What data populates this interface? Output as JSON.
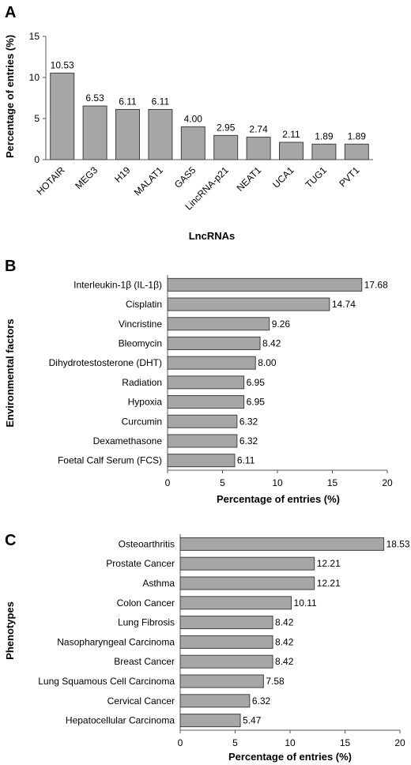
{
  "chart_data": [
    {
      "panel": "A",
      "type": "bar",
      "orientation": "vertical",
      "categories": [
        "HOTAIR",
        "MEG3",
        "H19",
        "MALAT1",
        "GAS5",
        "LincRNA-p21",
        "NEAT1",
        "UCA1",
        "TUG1",
        "PVT1"
      ],
      "values": [
        10.53,
        6.53,
        6.11,
        6.11,
        4.0,
        2.95,
        2.74,
        2.11,
        1.89,
        1.89
      ],
      "value_labels": [
        "10.53",
        "6.53",
        "6.11",
        "6.11",
        "4.00",
        "2.95",
        "2.74",
        "2.11",
        "1.89",
        "1.89"
      ],
      "xlabel": "LncRNAs",
      "ylabel": "Percentage of entries (%)",
      "ylim": [
        0,
        15
      ],
      "yticks": [
        "0",
        "5",
        "10",
        "15"
      ],
      "grid": false,
      "bar_color": "#a6a6a6",
      "bar_edge_color": "#404040"
    },
    {
      "panel": "B",
      "type": "bar",
      "orientation": "horizontal",
      "categories": [
        "Interleukin-1β (IL-1β)",
        "Cisplatin",
        "Vincristine",
        "Bleomycin",
        "Dihydrotestosterone (DHT)",
        "Radiation",
        "Hypoxia",
        "Curcumin",
        "Dexamethasone",
        "Foetal Calf Serum (FCS)"
      ],
      "values": [
        17.68,
        14.74,
        9.26,
        8.42,
        8.0,
        6.95,
        6.95,
        6.32,
        6.32,
        6.11
      ],
      "value_labels": [
        "17.68",
        "14.74",
        "9.26",
        "8.42",
        "8.00",
        "6.95",
        "6.95",
        "6.32",
        "6.32",
        "6.11"
      ],
      "xlabel": "Percentage of entries (%)",
      "ylabel": "Environmental factors",
      "xlim": [
        0,
        20
      ],
      "xticks": [
        "0",
        "5",
        "10",
        "15",
        "20"
      ],
      "grid": false,
      "bar_color": "#a6a6a6",
      "bar_edge_color": "#404040"
    },
    {
      "panel": "C",
      "type": "bar",
      "orientation": "horizontal",
      "categories": [
        "Osteoarthritis",
        "Prostate Cancer",
        "Asthma",
        "Colon Cancer",
        "Lung Fibrosis",
        "Nasopharyngeal Carcinoma",
        "Breast Cancer",
        "Lung Squamous Cell Carcinoma",
        "Cervical Cancer",
        "Hepatocellular Carcinoma"
      ],
      "values": [
        18.53,
        12.21,
        12.21,
        10.11,
        8.42,
        8.42,
        8.42,
        7.58,
        6.32,
        5.47
      ],
      "value_labels": [
        "18.53",
        "12.21",
        "12.21",
        "10.11",
        "8.42",
        "8.42",
        "8.42",
        "7.58",
        "6.32",
        "5.47"
      ],
      "xlabel": "Percentage of entries (%)",
      "ylabel": "Phenotypes",
      "xlim": [
        0,
        20
      ],
      "xticks": [
        "0",
        "5",
        "10",
        "15",
        "20"
      ],
      "grid": false,
      "bar_color": "#a6a6a6",
      "bar_edge_color": "#404040"
    }
  ]
}
